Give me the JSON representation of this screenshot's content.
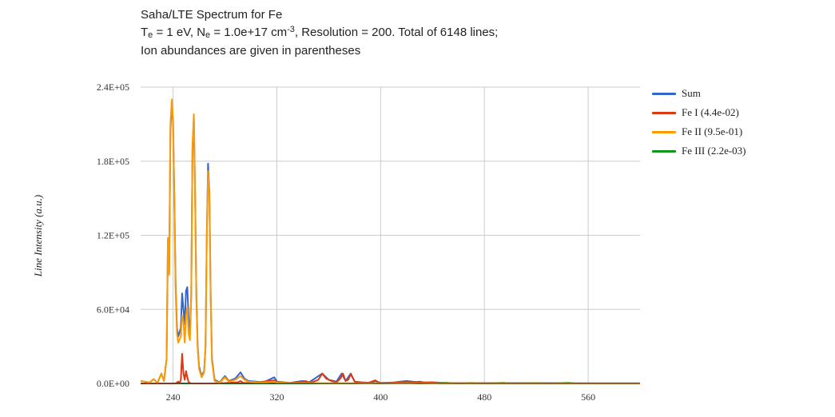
{
  "title_prefix": "Saha/LTE Spectrum for Fe",
  "subtitle": {
    "t": "T",
    "t_sub": "e",
    "t_val": " = 1 eV, N",
    "n_sub": "e",
    "n_val": " = 1.0e+17 cm",
    "n_sup": "-3",
    "rest": ", Resolution = 200. Total of 6148 lines;"
  },
  "note": "Ion abundances are given in parentheses",
  "chart_data": {
    "type": "line",
    "title": "Saha/LTE Spectrum for Fe",
    "ylabel": "Line Intensity (a.u.)",
    "xlabel": "",
    "xlim": [
      215,
      600
    ],
    "ylim": [
      0,
      240000
    ],
    "grid": true,
    "legend_position": "right",
    "x_ticks": [
      240,
      320,
      400,
      480,
      560
    ],
    "x_tick_labels": [
      "240",
      "320",
      "400",
      "480",
      "560"
    ],
    "y_ticks": [
      0,
      60000,
      120000,
      180000,
      240000
    ],
    "y_tick_labels": [
      "0.0E+00",
      "6.0E+04",
      "1.2E+05",
      "1.8E+05",
      "2.4E+05"
    ],
    "series": [
      {
        "name": "Sum",
        "color": "#3366cc",
        "width": 2,
        "points": [
          [
            215,
            2000
          ],
          [
            222,
            800
          ],
          [
            225,
            3500
          ],
          [
            228,
            500
          ],
          [
            231,
            8000
          ],
          [
            233,
            2000
          ],
          [
            235,
            20000
          ],
          [
            236,
            112000
          ],
          [
            237,
            90000
          ],
          [
            238,
            205000
          ],
          [
            239,
            228000
          ],
          [
            240,
            210000
          ],
          [
            241,
            150000
          ],
          [
            242,
            80000
          ],
          [
            243,
            45000
          ],
          [
            244,
            38000
          ],
          [
            246,
            45000
          ],
          [
            247,
            73000
          ],
          [
            248,
            60000
          ],
          [
            249,
            48000
          ],
          [
            250,
            75000
          ],
          [
            251,
            78000
          ],
          [
            252,
            52000
          ],
          [
            253,
            42000
          ],
          [
            254,
            70000
          ],
          [
            255,
            190000
          ],
          [
            256,
            215000
          ],
          [
            257,
            150000
          ],
          [
            258,
            70000
          ],
          [
            259,
            30000
          ],
          [
            260,
            14000
          ],
          [
            262,
            6000
          ],
          [
            264,
            10000
          ],
          [
            265,
            30000
          ],
          [
            266,
            120000
          ],
          [
            267,
            178000
          ],
          [
            268,
            155000
          ],
          [
            269,
            70000
          ],
          [
            270,
            20000
          ],
          [
            272,
            3000
          ],
          [
            276,
            1000
          ],
          [
            280,
            6000
          ],
          [
            283,
            2000
          ],
          [
            288,
            4000
          ],
          [
            292,
            9000
          ],
          [
            295,
            4000
          ],
          [
            298,
            2000
          ],
          [
            304,
            1500
          ],
          [
            310,
            1000
          ],
          [
            318,
            5000
          ],
          [
            320,
            1500
          ],
          [
            330,
            500
          ],
          [
            340,
            2000
          ],
          [
            345,
            1000
          ],
          [
            355,
            8000
          ],
          [
            360,
            3000
          ],
          [
            366,
            1500
          ],
          [
            370,
            8000
          ],
          [
            373,
            2000
          ],
          [
            377,
            8000
          ],
          [
            380,
            1500
          ],
          [
            385,
            1000
          ],
          [
            392,
            500
          ],
          [
            396,
            2000
          ],
          [
            400,
            500
          ],
          [
            410,
            800
          ],
          [
            420,
            2000
          ],
          [
            430,
            800
          ],
          [
            440,
            1000
          ],
          [
            450,
            300
          ],
          [
            500,
            300
          ],
          [
            530,
            300
          ],
          [
            560,
            200
          ],
          [
            600,
            100
          ]
        ]
      },
      {
        "name": "Fe I (4.4e-02)",
        "color": "#dc3912",
        "width": 2,
        "points": [
          [
            215,
            0
          ],
          [
            238,
            0
          ],
          [
            242,
            0
          ],
          [
            244,
            1500
          ],
          [
            245,
            0
          ],
          [
            246,
            3000
          ],
          [
            247,
            24000
          ],
          [
            248,
            8000
          ],
          [
            249,
            3000
          ],
          [
            250,
            10000
          ],
          [
            251,
            5000
          ],
          [
            252,
            1000
          ],
          [
            254,
            0
          ],
          [
            270,
            0
          ],
          [
            280,
            300
          ],
          [
            290,
            1000
          ],
          [
            292,
            2000
          ],
          [
            294,
            500
          ],
          [
            300,
            300
          ],
          [
            318,
            2500
          ],
          [
            320,
            800
          ],
          [
            330,
            300
          ],
          [
            338,
            800
          ],
          [
            342,
            2000
          ],
          [
            346,
            500
          ],
          [
            352,
            3000
          ],
          [
            355,
            8000
          ],
          [
            358,
            4000
          ],
          [
            362,
            2000
          ],
          [
            366,
            1000
          ],
          [
            369,
            4000
          ],
          [
            371,
            8000
          ],
          [
            373,
            2000
          ],
          [
            375,
            3000
          ],
          [
            377,
            7500
          ],
          [
            380,
            1500
          ],
          [
            384,
            800
          ],
          [
            390,
            300
          ],
          [
            396,
            2500
          ],
          [
            399,
            300
          ],
          [
            405,
            300
          ],
          [
            415,
            800
          ],
          [
            420,
            1800
          ],
          [
            425,
            1000
          ],
          [
            430,
            1500
          ],
          [
            435,
            600
          ],
          [
            440,
            800
          ],
          [
            445,
            200
          ],
          [
            460,
            150
          ],
          [
            600,
            0
          ]
        ]
      },
      {
        "name": "Fe II (9.5e-01)",
        "color": "#ff9900",
        "width": 2,
        "points": [
          [
            215,
            2000
          ],
          [
            222,
            800
          ],
          [
            225,
            3500
          ],
          [
            228,
            500
          ],
          [
            231,
            8000
          ],
          [
            233,
            2000
          ],
          [
            235,
            20000
          ],
          [
            236,
            118000
          ],
          [
            237,
            88000
          ],
          [
            238,
            210000
          ],
          [
            239,
            230000
          ],
          [
            240,
            212000
          ],
          [
            241,
            148000
          ],
          [
            242,
            75000
          ],
          [
            243,
            40000
          ],
          [
            244,
            33000
          ],
          [
            246,
            38000
          ],
          [
            247,
            55000
          ],
          [
            248,
            50000
          ],
          [
            249,
            33000
          ],
          [
            250,
            55000
          ],
          [
            251,
            62000
          ],
          [
            252,
            40000
          ],
          [
            253,
            35000
          ],
          [
            254,
            70000
          ],
          [
            255,
            193000
          ],
          [
            256,
            218000
          ],
          [
            257,
            152000
          ],
          [
            258,
            68000
          ],
          [
            259,
            28000
          ],
          [
            260,
            12000
          ],
          [
            262,
            5000
          ],
          [
            264,
            9000
          ],
          [
            265,
            30000
          ],
          [
            266,
            118000
          ],
          [
            267,
            172000
          ],
          [
            268,
            152000
          ],
          [
            269,
            68000
          ],
          [
            270,
            18000
          ],
          [
            272,
            2000
          ],
          [
            276,
            800
          ],
          [
            280,
            5000
          ],
          [
            283,
            1500
          ],
          [
            288,
            3000
          ],
          [
            292,
            6000
          ],
          [
            295,
            3000
          ],
          [
            298,
            1500
          ],
          [
            304,
            1000
          ],
          [
            310,
            800
          ],
          [
            318,
            1500
          ],
          [
            320,
            800
          ],
          [
            330,
            300
          ],
          [
            345,
            300
          ],
          [
            355,
            200
          ],
          [
            370,
            200
          ],
          [
            380,
            100
          ],
          [
            420,
            100
          ],
          [
            600,
            50
          ]
        ]
      },
      {
        "name": "Fe III (2.2e-03)",
        "color": "#109618",
        "width": 2,
        "points": [
          [
            215,
            0
          ],
          [
            300,
            0
          ],
          [
            380,
            0
          ],
          [
            390,
            300
          ],
          [
            400,
            0
          ],
          [
            420,
            500
          ],
          [
            430,
            0
          ],
          [
            450,
            600
          ],
          [
            460,
            0
          ],
          [
            470,
            400
          ],
          [
            480,
            0
          ],
          [
            495,
            500
          ],
          [
            500,
            0
          ],
          [
            520,
            300
          ],
          [
            530,
            0
          ],
          [
            545,
            500
          ],
          [
            550,
            0
          ],
          [
            560,
            0
          ],
          [
            600,
            0
          ]
        ]
      }
    ]
  },
  "legend": {
    "items": [
      {
        "label": "Sum",
        "color": "#3366cc"
      },
      {
        "label": "Fe I (4.4e-02)",
        "color": "#dc3912"
      },
      {
        "label": "Fe II (9.5e-01)",
        "color": "#ff9900"
      },
      {
        "label": "Fe III (2.2e-03)",
        "color": "#109618"
      }
    ]
  }
}
